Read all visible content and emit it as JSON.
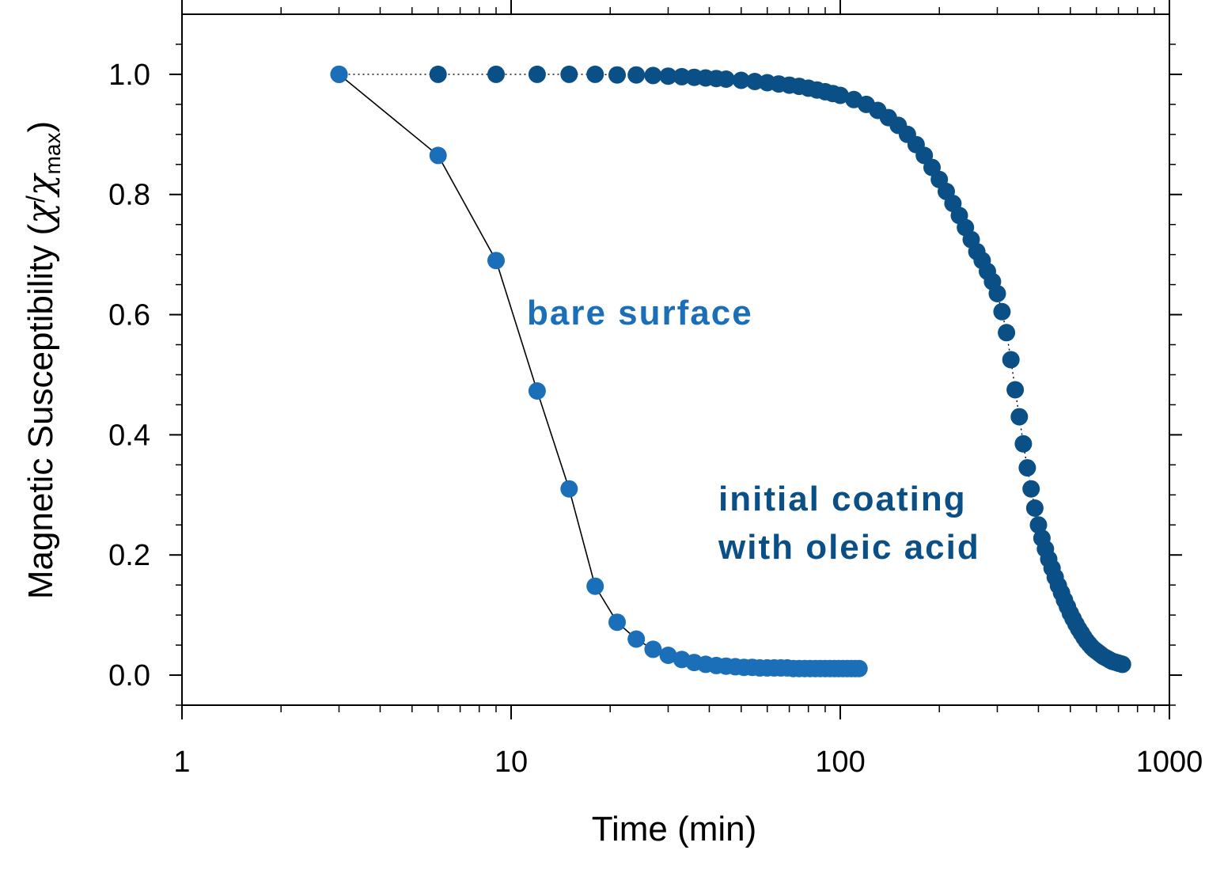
{
  "chart_data": {
    "type": "scatter",
    "title": "",
    "xlabel": "Time (min)",
    "ylabel": {
      "main": "Magnetic Susceptibility (",
      "chi": "χ",
      "slash": "/",
      "chi2": "χ",
      "sub": "max",
      "close": ")"
    },
    "x_scale": "log",
    "xlim": [
      1,
      1000
    ],
    "ylim": [
      -0.05,
      1.1
    ],
    "x_ticks": [
      {
        "value": 1,
        "label": "1"
      },
      {
        "value": 10,
        "label": "10"
      },
      {
        "value": 100,
        "label": "100"
      },
      {
        "value": 1000,
        "label": "1000"
      }
    ],
    "y_ticks": [
      {
        "value": 0.0,
        "label": "0.0"
      },
      {
        "value": 0.2,
        "label": "0.2"
      },
      {
        "value": 0.4,
        "label": "0.4"
      },
      {
        "value": 0.6,
        "label": "0.6"
      },
      {
        "value": 0.8,
        "label": "0.8"
      },
      {
        "value": 1.0,
        "label": "1.0"
      }
    ],
    "grid": false,
    "legend": "none",
    "annotations": [
      {
        "text": "bare surface",
        "series": "bare"
      },
      {
        "text": "initial coating",
        "series": "coated"
      },
      {
        "text": "with oleic acid",
        "series": "coated"
      }
    ],
    "series": [
      {
        "id": "bare",
        "color": "#1a6fb8",
        "line": "solid",
        "x": [
          3,
          6,
          9,
          12,
          15,
          18,
          21,
          24,
          27,
          30,
          33,
          36,
          39,
          42,
          45,
          48,
          51,
          54,
          57,
          60,
          63,
          66,
          69,
          72,
          75,
          78,
          81,
          84,
          87,
          90,
          93,
          96,
          99,
          102,
          105,
          108,
          111,
          114
        ],
        "y": [
          1.0,
          0.865,
          0.69,
          0.473,
          0.31,
          0.148,
          0.088,
          0.06,
          0.043,
          0.033,
          0.026,
          0.021,
          0.018,
          0.016,
          0.015,
          0.014,
          0.013,
          0.013,
          0.012,
          0.012,
          0.012,
          0.012,
          0.012,
          0.011,
          0.011,
          0.011,
          0.011,
          0.011,
          0.011,
          0.011,
          0.011,
          0.011,
          0.011,
          0.011,
          0.011,
          0.011,
          0.011,
          0.011
        ]
      },
      {
        "id": "coated",
        "color": "#0a4f86",
        "line": "dotted",
        "x": [
          3,
          6,
          9,
          12,
          15,
          18,
          21,
          24,
          27,
          30,
          33,
          36,
          39,
          42,
          45,
          50,
          55,
          60,
          65,
          70,
          75,
          80,
          85,
          90,
          95,
          100,
          110,
          120,
          130,
          140,
          150,
          160,
          170,
          180,
          190,
          200,
          210,
          220,
          230,
          240,
          250,
          260,
          270,
          280,
          290,
          300,
          310,
          320,
          330,
          340,
          350,
          360,
          370,
          380,
          390,
          400,
          410,
          420,
          430,
          440,
          450,
          460,
          470,
          480,
          490,
          500,
          510,
          520,
          530,
          540,
          550,
          560,
          570,
          580,
          590,
          600,
          610,
          620,
          630,
          640,
          650,
          660,
          670,
          680,
          690,
          700,
          710,
          720
        ],
        "y": [
          1.0,
          1.0,
          1.0,
          1.0,
          1.0,
          1.0,
          0.999,
          0.999,
          0.998,
          0.997,
          0.996,
          0.995,
          0.994,
          0.993,
          0.992,
          0.99,
          0.988,
          0.986,
          0.984,
          0.982,
          0.98,
          0.977,
          0.974,
          0.971,
          0.968,
          0.965,
          0.958,
          0.95,
          0.94,
          0.928,
          0.915,
          0.9,
          0.883,
          0.865,
          0.845,
          0.825,
          0.805,
          0.785,
          0.765,
          0.745,
          0.725,
          0.705,
          0.69,
          0.672,
          0.655,
          0.635,
          0.605,
          0.57,
          0.525,
          0.475,
          0.43,
          0.385,
          0.345,
          0.31,
          0.278,
          0.25,
          0.228,
          0.21,
          0.193,
          0.178,
          0.163,
          0.149,
          0.137,
          0.125,
          0.114,
          0.103,
          0.094,
          0.085,
          0.077,
          0.07,
          0.063,
          0.057,
          0.052,
          0.047,
          0.043,
          0.04,
          0.037,
          0.034,
          0.031,
          0.029,
          0.027,
          0.025,
          0.023,
          0.022,
          0.021,
          0.02,
          0.019,
          0.018
        ]
      }
    ]
  }
}
